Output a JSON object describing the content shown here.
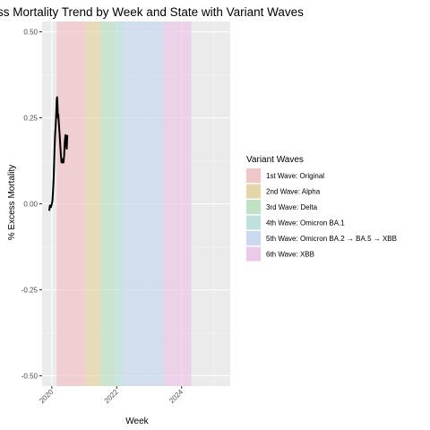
{
  "chart_data": {
    "type": "line",
    "title": "ss Mortality Trend by Week and State with Variant Waves",
    "xlabel": "Week",
    "ylabel": "% Excess Mortality",
    "xlim": [
      2019.7,
      2025.5
    ],
    "ylim": [
      -0.53,
      0.53
    ],
    "x_ticks": [
      2020,
      2022,
      2024
    ],
    "x_tick_labels": [
      "2020",
      "2022",
      "2024"
    ],
    "y_ticks": [
      -0.5,
      -0.25,
      0,
      0.25,
      0.5
    ],
    "y_tick_labels": [
      "-0.50",
      "-0.25",
      "0.00",
      "0.25",
      "0.50"
    ],
    "grid": true,
    "panel_background": "#ebebeb",
    "line_color": "#000000",
    "legend": {
      "title": "Variant Waves",
      "placement": "right",
      "items": [
        {
          "label": "1st Wave: Original",
          "color": "#f0c6c9"
        },
        {
          "label": "2nd Wave: Alpha",
          "color": "#e5d5aa"
        },
        {
          "label": "3rd Wave: Delta",
          "color": "#bfe2c5"
        },
        {
          "label": "4th Wave: Omicron BA.1",
          "color": "#bfe0df"
        },
        {
          "label": "5th Wave: Omicron BA.2 → BA.5 → XBB",
          "color": "#cad9ef"
        },
        {
          "label": "6th Wave: XBB",
          "color": "#ecc9e8"
        }
      ]
    },
    "waves": [
      {
        "start": 2020.15,
        "end": 2021.05,
        "color": "#f0c6c9"
      },
      {
        "start": 2021.05,
        "end": 2021.5,
        "color": "#e5d5aa"
      },
      {
        "start": 2021.5,
        "end": 2021.95,
        "color": "#bfe2c5"
      },
      {
        "start": 2021.95,
        "end": 2022.25,
        "color": "#bfe0df"
      },
      {
        "start": 2022.25,
        "end": 2023.45,
        "color": "#cad9ef"
      },
      {
        "start": 2023.45,
        "end": 2024.3,
        "color": "#ecc9e8"
      }
    ],
    "series": [
      {
        "x": [
          2019.92,
          2019.94,
          2019.97,
          2020.0,
          2020.02,
          2020.04,
          2020.06,
          2020.08,
          2020.1,
          2020.12,
          2020.14,
          2020.15,
          2020.16,
          2020.17,
          2020.18,
          2020.19,
          2020.2,
          2020.22,
          2020.24,
          2020.26,
          2020.28,
          2020.3,
          2020.32,
          2020.34,
          2020.36,
          2020.38,
          2020.4,
          2020.42,
          2020.44,
          2020.46,
          2020.48
        ],
        "y": [
          -0.02,
          -0.005,
          -0.01,
          0.0,
          0.01,
          0.04,
          0.08,
          0.15,
          0.2,
          0.23,
          0.27,
          0.3,
          0.31,
          0.3,
          0.27,
          0.25,
          0.26,
          0.23,
          0.2,
          0.17,
          0.14,
          0.12,
          0.12,
          0.13,
          0.12,
          0.14,
          0.18,
          0.2,
          0.17,
          0.16,
          0.2
        ]
      }
    ]
  }
}
